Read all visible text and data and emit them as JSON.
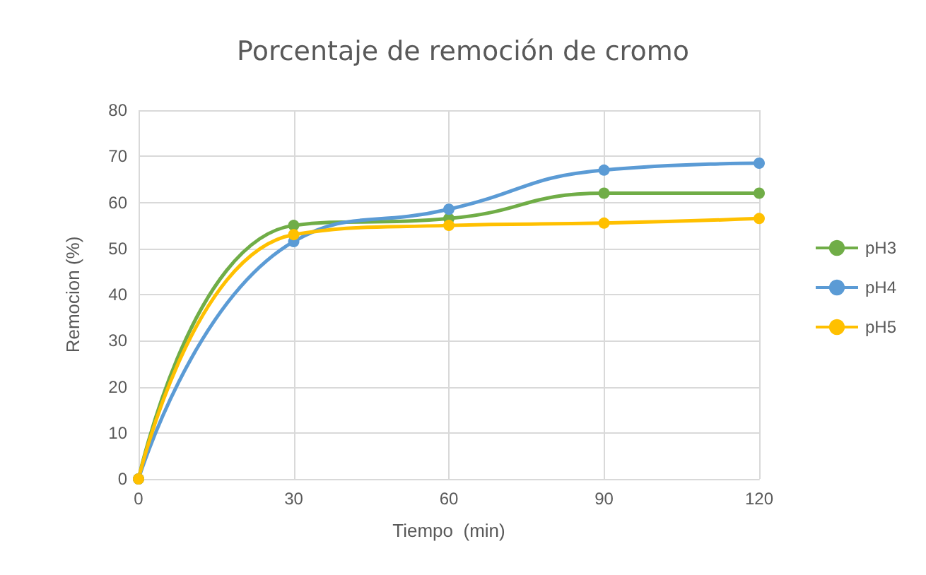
{
  "chart_data": {
    "type": "line",
    "title": "Porcentaje de remoción de cromo",
    "xlabel": "Tiempo  (min)",
    "ylabel": "Remocion (%)",
    "x": [
      0,
      30,
      60,
      90,
      120
    ],
    "series": [
      {
        "name": "pH3",
        "color": "#70ad47",
        "values": [
          0,
          55,
          56.5,
          62,
          62
        ]
      },
      {
        "name": "pH4",
        "color": "#5b9bd5",
        "values": [
          0,
          51.5,
          58.5,
          67,
          68.5
        ]
      },
      {
        "name": "pH5",
        "color": "#ffc000",
        "values": [
          0,
          53,
          55,
          55.5,
          56.5
        ]
      }
    ],
    "xlim": [
      0,
      120
    ],
    "xticks": [
      0,
      30,
      60,
      90,
      120
    ],
    "ylim": [
      0,
      80
    ],
    "yticks": [
      0,
      10,
      20,
      30,
      40,
      50,
      60,
      70,
      80
    ],
    "grid": true,
    "legend": "right",
    "marker": "circle",
    "line_style": "solid"
  }
}
